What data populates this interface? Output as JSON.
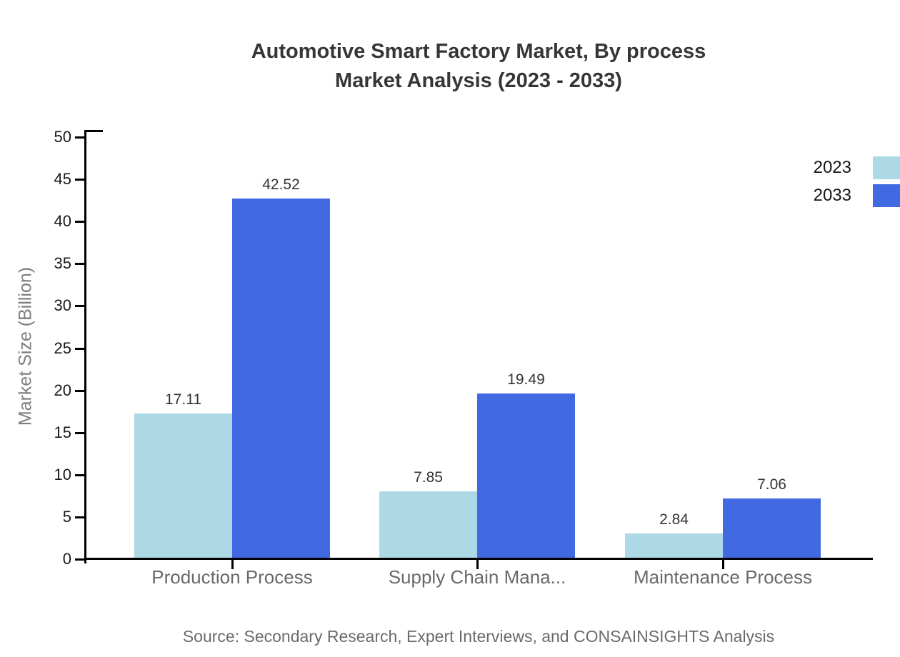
{
  "title": {
    "line1": "Automotive Smart Factory Market, By process",
    "line2": "Market Analysis (2023 - 2033)"
  },
  "legend": {
    "items": [
      {
        "label": "2023",
        "color": "#ADD8E6"
      },
      {
        "label": "2033",
        "color": "#4169E1"
      }
    ]
  },
  "y_axis": {
    "title": "Market Size (Billion)",
    "tick_values": [
      0,
      5,
      10,
      15,
      20,
      25,
      30,
      35,
      40,
      45,
      50
    ]
  },
  "source": "Source: Secondary Research, Expert Interviews, and CONSAINSIGHTS Analysis",
  "chart_data": {
    "type": "bar",
    "title": "Automotive Smart Factory Market, By process Market Analysis (2023 - 2033)",
    "categories": [
      "Production Process",
      "Supply Chain Mana...",
      "Maintenance Process"
    ],
    "series": [
      {
        "name": "2023",
        "color": "#ADD8E6",
        "values": [
          17.11,
          7.85,
          2.84
        ]
      },
      {
        "name": "2033",
        "color": "#4169E1",
        "values": [
          42.52,
          19.49,
          7.06
        ]
      }
    ],
    "xlabel": "",
    "ylabel": "Market Size (Billion)",
    "ylim": [
      0,
      50
    ],
    "ytick_step": 5,
    "grid": false,
    "legend_position": "top-right",
    "value_labels": true
  }
}
